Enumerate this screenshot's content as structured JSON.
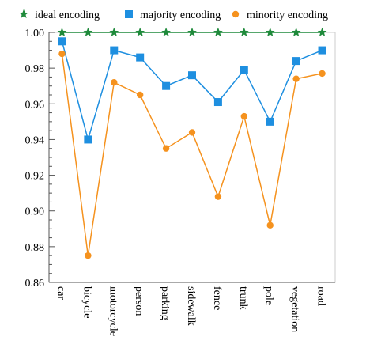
{
  "chart_data": {
    "type": "line",
    "categories": [
      "car",
      "bicycle",
      "motorcycle",
      "person",
      "parking",
      "sidewalk",
      "fence",
      "trunk",
      "pole",
      "vegetation",
      "road"
    ],
    "series": [
      {
        "name": "ideal encoding",
        "marker": "star",
        "color": "#1f8a3b",
        "values": [
          1.0,
          1.0,
          1.0,
          1.0,
          1.0,
          1.0,
          1.0,
          1.0,
          1.0,
          1.0,
          1.0
        ]
      },
      {
        "name": "majority encoding",
        "marker": "square",
        "color": "#1e8fe0",
        "values": [
          0.995,
          0.94,
          0.99,
          0.986,
          0.97,
          0.976,
          0.961,
          0.979,
          0.95,
          0.984,
          0.99
        ]
      },
      {
        "name": "minority encoding",
        "marker": "circle",
        "color": "#f5921e",
        "values": [
          0.988,
          0.875,
          0.972,
          0.965,
          0.935,
          0.944,
          0.908,
          0.953,
          0.892,
          0.974,
          0.977
        ]
      }
    ],
    "yticks": [
      "0.86",
      "0.88",
      "0.90",
      "0.92",
      "0.94",
      "0.96",
      "0.98",
      "1.00"
    ],
    "ylim": [
      0.86,
      1.0
    ],
    "title": "",
    "xlabel": "",
    "ylabel": "",
    "legend_position": "top",
    "grid": false
  }
}
